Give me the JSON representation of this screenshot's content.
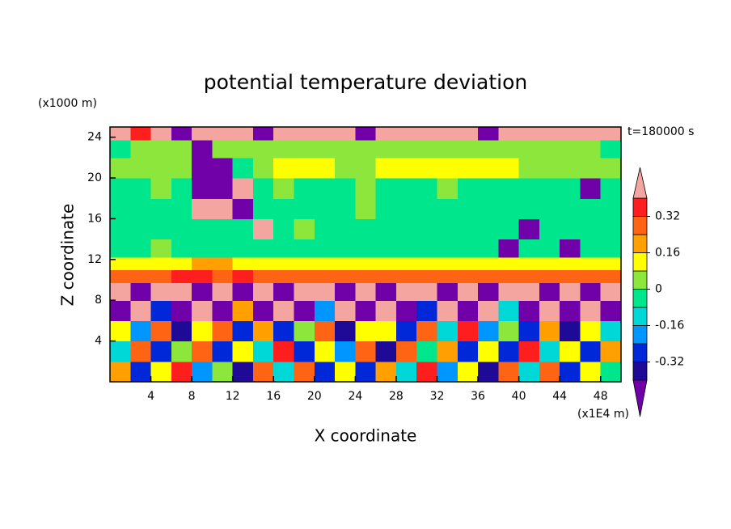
{
  "chart_data": {
    "type": "contour",
    "title": "potential temperature deviation",
    "x_label": "X coordinate",
    "y_label": "Z coordinate",
    "x_unit": "(x1E4 m)",
    "y_unit": "(x1000 m)",
    "annotation": "t=180000 s",
    "xlim": [
      0,
      50
    ],
    "ylim": [
      0,
      25
    ],
    "xticks": [
      4,
      8,
      12,
      16,
      20,
      24,
      28,
      32,
      36,
      40,
      44,
      48
    ],
    "yticks": [
      4,
      8,
      12,
      16,
      20,
      24
    ],
    "levels": [
      -0.4,
      -0.32,
      -0.24,
      -0.16,
      -0.08,
      0,
      0.08,
      0.16,
      0.24,
      0.32,
      0.4
    ],
    "colors": [
      "#7000a8",
      "#1e0a96",
      "#0028d8",
      "#0096ff",
      "#00d8d8",
      "#00e68c",
      "#8ce63c",
      "#ffff00",
      "#ffa000",
      "#ff6414",
      "#ff1e1e",
      "#f5a5a0"
    ],
    "colorbar_ticks": [
      0.32,
      0.16,
      0,
      -0.16,
      -0.32
    ],
    "x": [
      1,
      3,
      5,
      7,
      9,
      11,
      13,
      15,
      17,
      19,
      21,
      23,
      25,
      27,
      29,
      31,
      33,
      35,
      37,
      39,
      41,
      43,
      45,
      47,
      49
    ],
    "y": [
      1,
      3,
      5,
      7,
      9,
      10.5,
      11.5,
      13,
      15,
      17,
      19,
      21,
      23,
      24.5
    ],
    "z": [
      [
        0.2,
        -0.3,
        0.1,
        0.35,
        -0.2,
        0.05,
        -0.35,
        0.25,
        -0.1,
        0.3,
        -0.25,
        0.15,
        -0.3,
        0.2,
        -0.15,
        0.35,
        -0.2,
        0.1,
        -0.35,
        0.25,
        -0.1,
        0.3,
        -0.25,
        0.15,
        -0.05
      ],
      [
        -0.1,
        0.25,
        -0.3,
        0.05,
        0.3,
        -0.25,
        0.15,
        -0.1,
        0.35,
        -0.3,
        0.1,
        -0.2,
        0.25,
        -0.35,
        0.3,
        -0.05,
        0.2,
        -0.3,
        0.15,
        -0.25,
        0.35,
        -0.15,
        0.1,
        -0.3,
        0.2
      ],
      [
        0.15,
        -0.2,
        0.3,
        -0.35,
        0.1,
        0.25,
        -0.3,
        0.2,
        -0.25,
        0.05,
        0.3,
        -0.35,
        0.15,
        0.1,
        -0.3,
        0.25,
        -0.1,
        0.35,
        -0.2,
        0.05,
        -0.3,
        0.2,
        -0.35,
        0.1,
        -0.15
      ],
      [
        -0.45,
        0.45,
        -0.3,
        -0.45,
        0.45,
        -0.45,
        0.2,
        -0.45,
        0.45,
        -0.45,
        -0.2,
        0.45,
        -0.45,
        0.45,
        -0.45,
        -0.3,
        0.45,
        -0.45,
        0.45,
        -0.1,
        -0.45,
        0.45,
        -0.45,
        0.45,
        -0.45
      ],
      [
        0.45,
        -0.45,
        0.45,
        0.45,
        -0.45,
        0.45,
        -0.45,
        0.45,
        -0.45,
        0.45,
        0.45,
        -0.45,
        0.45,
        -0.45,
        0.45,
        0.45,
        -0.45,
        0.45,
        -0.45,
        0.45,
        0.45,
        -0.45,
        0.45,
        -0.45,
        0.45
      ],
      [
        0.3,
        0.28,
        0.3,
        0.35,
        0.36,
        0.3,
        0.34,
        0.3,
        0.28,
        0.3,
        0.3,
        0.27,
        0.3,
        0.3,
        0.26,
        0.28,
        0.3,
        0.27,
        0.28,
        0.3,
        0.26,
        0.28,
        0.3,
        0.28,
        0.27
      ],
      [
        0.1,
        0.12,
        0.14,
        0.1,
        0.2,
        0.18,
        0.12,
        0.1,
        0.1,
        0.12,
        0.1,
        0.1,
        0.1,
        0.1,
        0.1,
        0.12,
        0.1,
        0.1,
        0.12,
        0.1,
        0.1,
        0.1,
        0.12,
        0.1,
        0.1
      ],
      [
        -0.04,
        -0.04,
        0.04,
        -0.04,
        -0.04,
        -0.02,
        -0.04,
        -0.04,
        -0.04,
        -0.04,
        -0.04,
        -0.04,
        -0.04,
        -0.04,
        -0.04,
        -0.04,
        -0.04,
        -0.04,
        -0.04,
        -0.45,
        -0.04,
        -0.04,
        -0.45,
        -0.04,
        -0.04
      ],
      [
        -0.04,
        -0.04,
        -0.04,
        -0.04,
        -0.04,
        -0.04,
        -0.04,
        0.45,
        -0.04,
        0.02,
        -0.04,
        -0.04,
        -0.04,
        -0.04,
        -0.04,
        -0.04,
        -0.04,
        -0.04,
        -0.04,
        -0.04,
        -0.45,
        -0.04,
        -0.04,
        -0.04,
        -0.04
      ],
      [
        -0.04,
        -0.04,
        -0.04,
        -0.04,
        0.45,
        0.45,
        -0.45,
        -0.04,
        -0.04,
        -0.04,
        -0.04,
        -0.04,
        0.02,
        -0.04,
        -0.04,
        -0.04,
        -0.04,
        -0.04,
        -0.04,
        -0.04,
        -0.04,
        -0.04,
        -0.04,
        -0.04,
        -0.04
      ],
      [
        -0.04,
        -0.04,
        0.04,
        -0.04,
        -0.45,
        -0.45,
        0.45,
        -0.04,
        0.04,
        -0.04,
        -0.04,
        -0.04,
        0.02,
        -0.04,
        -0.04,
        -0.04,
        0.02,
        -0.04,
        -0.04,
        -0.04,
        -0.04,
        -0.04,
        -0.04,
        -0.45,
        -0.04
      ],
      [
        0.04,
        0.04,
        0.04,
        0.04,
        -0.45,
        -0.45,
        -0.04,
        0.04,
        0.1,
        0.12,
        0.1,
        0.04,
        0.04,
        0.1,
        0.12,
        0.12,
        0.1,
        0.1,
        0.12,
        0.1,
        0.04,
        0.04,
        0.04,
        0.04,
        0.04
      ],
      [
        -0.04,
        0.04,
        0.04,
        0.04,
        -0.45,
        0.04,
        0.04,
        0.04,
        0.04,
        0.04,
        0.04,
        0.04,
        0.04,
        0.04,
        0.04,
        0.04,
        0.04,
        0.04,
        0.04,
        0.04,
        0.04,
        0.04,
        0.04,
        0.04,
        -0.04
      ],
      [
        0.45,
        0.35,
        0.45,
        -0.45,
        0.45,
        0.45,
        0.45,
        -0.45,
        0.45,
        0.45,
        0.45,
        0.45,
        -0.45,
        0.45,
        0.45,
        0.45,
        0.45,
        0.45,
        -0.45,
        0.45,
        0.45,
        0.45,
        0.45,
        0.45,
        0.45
      ]
    ]
  }
}
